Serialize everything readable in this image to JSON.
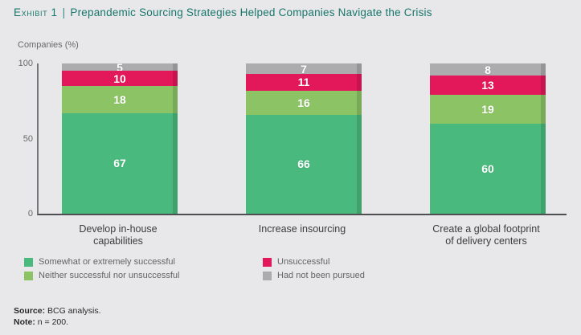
{
  "header": {
    "exhibit_label": "Exhibit 1",
    "separator": "|",
    "title": "Prepandemic Sourcing Strategies Helped Companies Navigate the Crisis"
  },
  "chart_data": {
    "type": "bar",
    "stacked": true,
    "title": "Prepandemic Sourcing Strategies Helped Companies Navigate the Crisis",
    "ylabel": "Companies (%)",
    "ylim": [
      0,
      100
    ],
    "yticks": [
      100,
      50,
      0
    ],
    "grid": false,
    "legend_position": "bottom",
    "categories": [
      "Develop in-house capabilities",
      "Increase insourcing",
      "Create a global footprint of delivery centers"
    ],
    "category_lines": [
      [
        "Develop in-house",
        "capabilities"
      ],
      [
        "Increase insourcing"
      ],
      [
        "Create a global footprint",
        "of delivery centers"
      ]
    ],
    "series": [
      {
        "name": "Somewhat or extremely successful",
        "color": "#49b97d",
        "values": [
          67,
          66,
          60
        ]
      },
      {
        "name": "Neither successful nor unsuccessful",
        "color": "#8cc465",
        "values": [
          18,
          16,
          19
        ]
      },
      {
        "name": "Unsuccessful",
        "color": "#e3185a",
        "values": [
          10,
          11,
          13
        ]
      },
      {
        "name": "Had not been pursued",
        "color": "#acacae",
        "values": [
          5,
          7,
          8
        ]
      }
    ]
  },
  "footer": {
    "source_label": "Source:",
    "source_text": "BCG analysis.",
    "note_label": "Note:",
    "note_text": "n = 200."
  },
  "colors": {
    "background": "#e8e8ea",
    "title": "#19766c",
    "axis_text": "#69696b",
    "category_text": "#3c3c3e",
    "legend_text": "#646466",
    "value_label": "#ffffff"
  }
}
